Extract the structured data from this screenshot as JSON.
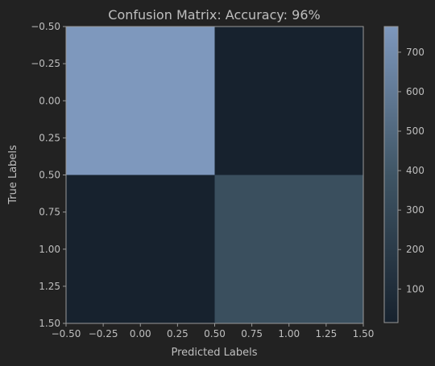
{
  "chart_data": {
    "type": "heatmap",
    "title": "Confusion Matrix: Accuracy: 96%",
    "xlabel": "Predicted Labels",
    "ylabel": "True Labels",
    "xlim": [
      -0.5,
      1.5
    ],
    "ylim": [
      1.5,
      -0.5
    ],
    "xticks": [
      "−0.50",
      "−0.25",
      "0.00",
      "0.25",
      "0.50",
      "0.75",
      "1.00",
      "1.25",
      "1.50"
    ],
    "yticks": [
      "−0.50",
      "−0.25",
      "0.00",
      "0.25",
      "0.50",
      "0.75",
      "1.00",
      "1.25",
      "1.50"
    ],
    "matrix": [
      [
        765,
        18
      ],
      [
        15,
        345
      ]
    ],
    "colorbar": {
      "range": [
        15,
        765
      ],
      "ticks": [
        "100",
        "200",
        "300",
        "400",
        "500",
        "600",
        "700"
      ],
      "tick_values": [
        100,
        200,
        300,
        400,
        500,
        600,
        700
      ]
    },
    "colors": {
      "background": "#222222",
      "text": "#bfbfbf",
      "axis": "#9a9a9a",
      "low": "#17222e",
      "high": "#7e98bd"
    }
  }
}
